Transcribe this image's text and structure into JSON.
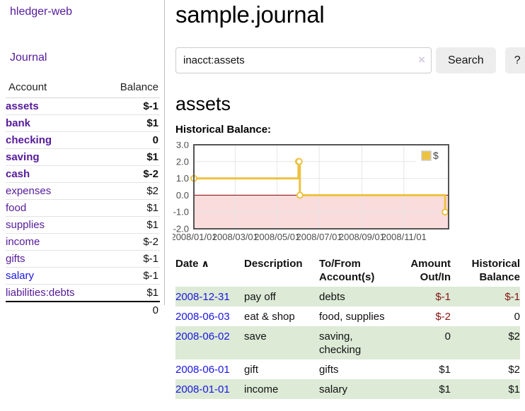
{
  "colors": {
    "link_purple": "#551a9b",
    "link_blue": "#1a16e0",
    "negative_strong": "#871414",
    "negative_soft": "#c17e7e",
    "row_green": "#dcead6",
    "series_gold": "#edc240"
  },
  "sidebar": {
    "app_title": "hledger-web",
    "journal_link": "Journal",
    "table": {
      "header_account": "Account",
      "header_balance": "Balance",
      "rows": [
        {
          "name": "assets",
          "balance": "$-1"
        },
        {
          "name": "bank",
          "balance": "$1"
        },
        {
          "name": "checking",
          "balance": "0"
        },
        {
          "name": "saving",
          "balance": "$1"
        },
        {
          "name": "cash",
          "balance": "$-2"
        },
        {
          "name": "expenses",
          "balance": "$2"
        },
        {
          "name": "food",
          "balance": "$1"
        },
        {
          "name": "supplies",
          "balance": "$1"
        },
        {
          "name": "income",
          "balance": "$-2"
        },
        {
          "name": "gifts",
          "balance": "$-1"
        },
        {
          "name": "salary",
          "balance": "$-1"
        },
        {
          "name": "liabilities:debts",
          "balance": "$1"
        }
      ],
      "total": "0"
    }
  },
  "main": {
    "title": "sample.journal",
    "search": {
      "value": "inacct:assets",
      "clear_icon": "×",
      "button_label": "Search",
      "help_label": "?"
    },
    "account_heading": "assets",
    "chart_label": "Historical Balance:"
  },
  "chart_data": {
    "type": "line",
    "step": true,
    "title": "Historical Balance:",
    "series": [
      {
        "name": "$",
        "color": "#edc240",
        "points_dates": [
          "2008-01-01",
          "2008-06-01",
          "2008-06-02",
          "2008-06-03",
          "2008-12-31"
        ],
        "points_x_days": [
          0,
          152,
          153,
          154,
          365
        ],
        "values": [
          1,
          2,
          2,
          0,
          -1
        ]
      }
    ],
    "x_tick_labels": [
      "2008/01/01",
      "2008/03/01",
      "2008/05/01",
      "2008/07/01",
      "2008/09/01",
      "2008/11/01"
    ],
    "x_tick_days": [
      0,
      60,
      121,
      182,
      244,
      305
    ],
    "y_ticks": [
      "3.0",
      "2.0",
      "1.0",
      "0.0",
      "-1.0",
      "-2.0"
    ],
    "y_tick_values": [
      3,
      2,
      1,
      0,
      -1,
      -2
    ],
    "ylim": [
      -2,
      3
    ],
    "xlim_days": [
      0,
      370
    ],
    "grid": true,
    "legend_position": "top-right",
    "negative_region_color": "#fadcdc",
    "zero_line_color": "#8b0000",
    "grid_color": "#e6e6e6",
    "border_color": "#545454"
  },
  "register": {
    "headers": {
      "date": "Date",
      "sort_icon": "∧",
      "description": "Description",
      "accounts": "To/From Account(s)",
      "amount": "Amount Out/In",
      "balance": "Historical Balance"
    },
    "rows": [
      {
        "date": "2008-12-31",
        "description": "pay off",
        "accounts": "debts",
        "amount": "$-1",
        "balance": "$-1"
      },
      {
        "date": "2008-06-03",
        "description": "eat & shop",
        "accounts": "food, supplies",
        "amount": "$-2",
        "balance": "0"
      },
      {
        "date": "2008-06-02",
        "description": "save",
        "accounts": "saving, checking",
        "amount": "0",
        "balance": "$2"
      },
      {
        "date": "2008-06-01",
        "description": "gift",
        "accounts": "gifts",
        "amount": "$1",
        "balance": "$2"
      },
      {
        "date": "2008-01-01",
        "description": "income",
        "accounts": "salary",
        "amount": "$1",
        "balance": "$1"
      }
    ]
  }
}
